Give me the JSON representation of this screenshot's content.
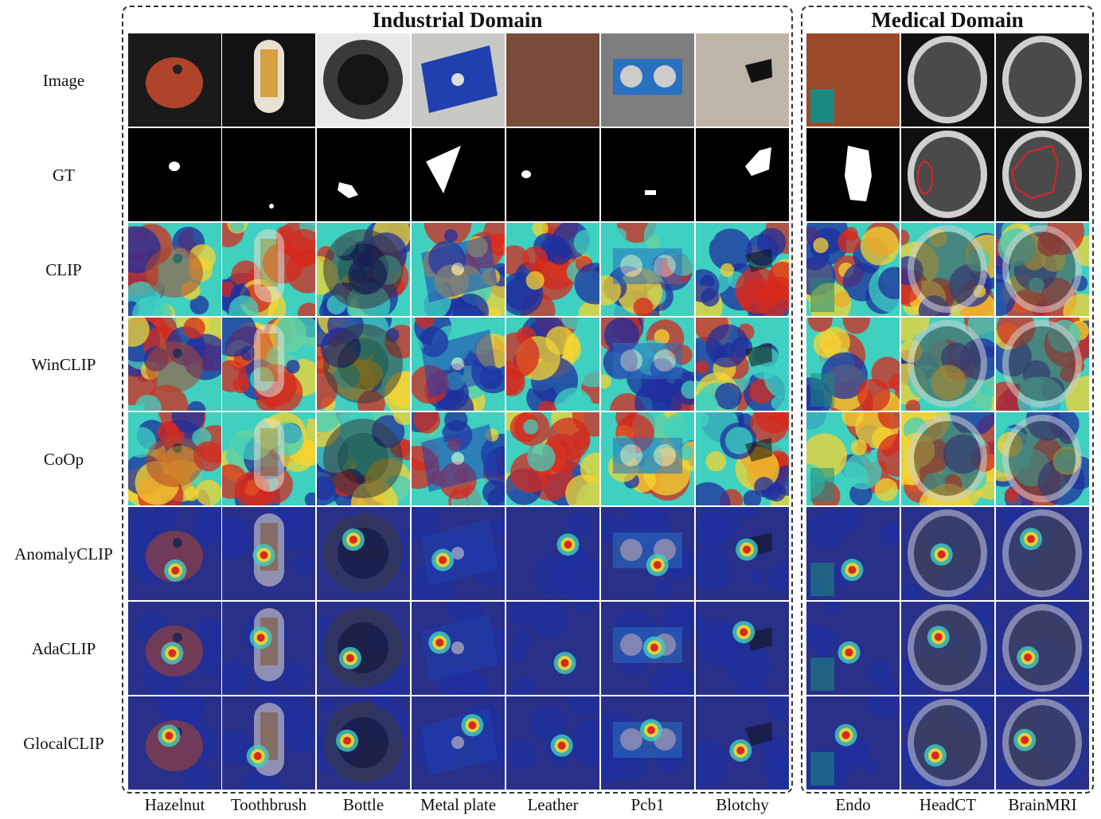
{
  "domains": {
    "industrial": {
      "title": "Industrial Domain"
    },
    "medical": {
      "title": "Medical Domain"
    }
  },
  "rows": [
    "Image",
    "GT",
    "CLIP",
    "WinCLIP",
    "CoOp",
    "AnomalyCLIP",
    "AdaCLIP",
    "GlocalCLIP"
  ],
  "columns": [
    "Hazelnut",
    "Toothbrush",
    "Bottle",
    "Metal plate",
    "Leather",
    "Pcb1",
    "Blotchy",
    "Endo",
    "HeadCT",
    "BrainMRI"
  ],
  "colors": {
    "heat_low": "#1f2f9e",
    "heat_mid": "#3fd0c0",
    "heat_warm": "#f5d430",
    "heat_high": "#d62a1e",
    "mask_bg": "#000000",
    "mask_fg": "#ffffff",
    "gt_outline": "#e0202a"
  }
}
